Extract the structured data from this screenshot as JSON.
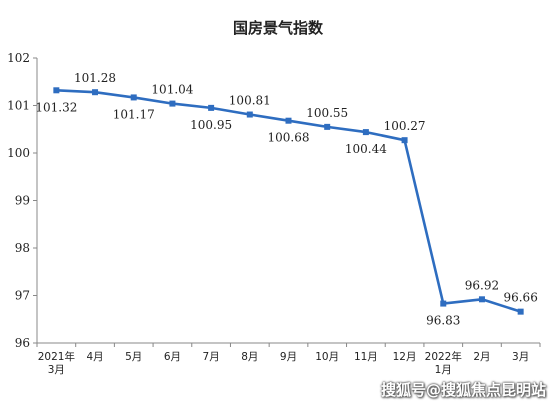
{
  "chart_data": {
    "type": "line",
    "title": "国房景气指数",
    "categories": [
      [
        "2021年",
        "3月"
      ],
      [
        "4月"
      ],
      [
        "5月"
      ],
      [
        "6月"
      ],
      [
        "7月"
      ],
      [
        "8月"
      ],
      [
        "9月"
      ],
      [
        "10月"
      ],
      [
        "11月"
      ],
      [
        "12月"
      ],
      [
        "2022年",
        "1月"
      ],
      [
        "2月"
      ],
      [
        "3月"
      ]
    ],
    "series": [
      {
        "values": [
          101.32,
          101.28,
          101.17,
          101.04,
          100.95,
          100.81,
          100.68,
          100.55,
          100.44,
          100.27,
          96.83,
          96.92,
          96.66
        ],
        "labels": [
          "101.32",
          "101.28",
          "101.17",
          "101.04",
          "100.95",
          "100.81",
          "100.68",
          "100.55",
          "100.44",
          "100.27",
          "96.83",
          "96.92",
          "96.66"
        ],
        "label_positions": [
          "below",
          "above",
          "below",
          "above",
          "below",
          "above",
          "below",
          "above",
          "below",
          "above",
          "below",
          "above",
          "above"
        ]
      }
    ],
    "ylim": [
      96,
      102
    ],
    "yticks": [
      "96",
      "97",
      "98",
      "99",
      "100",
      "101",
      "102"
    ],
    "xlabel": "",
    "ylabel": "",
    "grid": false,
    "line_color": "#2e6dc0"
  },
  "watermark": "搜狐号@搜狐焦点昆明站"
}
